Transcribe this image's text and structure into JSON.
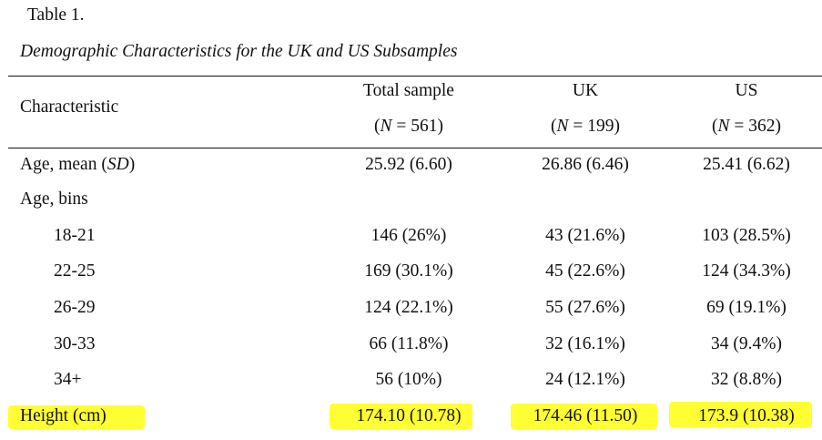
{
  "table": {
    "label": "Table 1.",
    "title": "Demographic Characteristics for the UK and US Subsamples",
    "header": {
      "row_label": "Characteristic",
      "columns": [
        {
          "name": "Total sample",
          "n_prefix": "(",
          "n_symbol": "N",
          "n_rest": " = 561)"
        },
        {
          "name": "UK",
          "n_prefix": "(",
          "n_symbol": "N",
          "n_rest": " = 199)"
        },
        {
          "name": "US",
          "n_prefix": "(",
          "n_symbol": "N",
          "n_rest": " = 362)"
        }
      ]
    },
    "rows": {
      "age_mean": {
        "label_prefix": "Age, mean (",
        "label_symbol": "SD",
        "label_suffix": ")",
        "values": [
          "25.92 (6.60)",
          "26.86 (6.46)",
          "25.41 (6.62)"
        ]
      },
      "age_bins": {
        "label": "Age, bins"
      },
      "bin_18_21": {
        "label": "18-21",
        "values": [
          "146 (26%)",
          "43 (21.6%)",
          "103 (28.5%)"
        ]
      },
      "bin_22_25": {
        "label": "22-25",
        "values": [
          "169 (30.1%)",
          "45 (22.6%)",
          "124 (34.3%)"
        ]
      },
      "bin_26_29": {
        "label": "26-29",
        "values": [
          "124 (22.1%)",
          "55 (27.6%)",
          "69 (19.1%)"
        ]
      },
      "bin_30_33": {
        "label": "30-33",
        "values": [
          "66 (11.8%)",
          "32 (16.1%)",
          "34 (9.4%)"
        ]
      },
      "bin_34_plus": {
        "label": "34+",
        "values": [
          "56 (10%)",
          "24 (12.1%)",
          "32 (8.8%)"
        ]
      },
      "height": {
        "label": "Height (cm)",
        "values": [
          "174.10 (10.78)",
          "174.46 (11.50)",
          "173.9 (10.38)"
        ]
      }
    },
    "highlight_color": "#ffff33"
  }
}
